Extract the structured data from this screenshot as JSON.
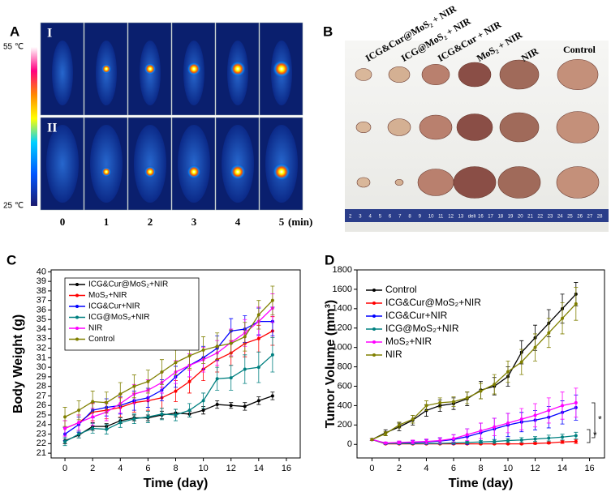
{
  "panels": {
    "a": {
      "label": "A",
      "scale_max": "55 ℃",
      "scale_min": "25 ℃",
      "rows": [
        "I",
        "II"
      ],
      "times": [
        "0",
        "1",
        "2",
        "3",
        "4",
        "5"
      ],
      "time_unit": "(min)"
    },
    "b": {
      "label": "B",
      "groups": [
        "ICG&Cur@MoS₂ + NIR",
        "ICG@MoS₂ + NIR",
        "ICG&Cur + NIR",
        "MoS₂ + NIR",
        "NIR",
        "Control"
      ],
      "ruler": [
        "2",
        "3",
        "4",
        "5",
        "6",
        "7",
        "8",
        "9",
        "10",
        "11",
        "12",
        "13",
        "deli",
        "16",
        "17",
        "18",
        "19",
        "20",
        "21",
        "22",
        "23",
        "24",
        "25",
        "26",
        "27",
        "28"
      ]
    },
    "c": {
      "label": "C"
    },
    "d": {
      "label": "D"
    }
  },
  "chart_data": [
    {
      "type": "line",
      "x_label": "Time (day)",
      "y_label": "Body Weight (g)",
      "x": [
        0,
        1,
        2,
        3,
        4,
        5,
        6,
        7,
        8,
        9,
        10,
        11,
        12,
        13,
        14,
        15
      ],
      "xlim": [
        -1,
        17
      ],
      "xticks": [
        0,
        2,
        4,
        6,
        8,
        10,
        12,
        14,
        16
      ],
      "ylim": [
        20.5,
        40.2
      ],
      "yticks": [
        21,
        22,
        23,
        24,
        25,
        26,
        27,
        28,
        29,
        30,
        31,
        32,
        33,
        34,
        35,
        36,
        37,
        38,
        39,
        40
      ],
      "legend": "upper left",
      "legend_frame": true,
      "series": [
        {
          "name": "ICG&Cur@MoS₂+NIR",
          "color": "#000000",
          "values": [
            22.3,
            22.9,
            23.8,
            23.8,
            24.4,
            24.7,
            24.7,
            25.0,
            25.2,
            25.1,
            25.5,
            26.1,
            26.0,
            25.9,
            26.5,
            27.0
          ],
          "errors": [
            0.3,
            0.3,
            0.4,
            0.3,
            0.3,
            0.3,
            0.3,
            0.4,
            0.4,
            0.3,
            0.4,
            0.4,
            0.3,
            0.4,
            0.4,
            0.4
          ]
        },
        {
          "name": "MoS₂+NIR",
          "color": "#ff0000",
          "values": [
            23.6,
            24.2,
            25.3,
            25.5,
            25.8,
            26.3,
            26.5,
            26.8,
            27.5,
            28.5,
            29.8,
            30.8,
            31.5,
            32.5,
            33.0,
            33.8
          ],
          "errors": [
            0.8,
            0.8,
            0.9,
            0.9,
            1.0,
            1.0,
            1.0,
            1.1,
            1.1,
            1.2,
            1.2,
            1.3,
            1.3,
            1.4,
            1.4,
            1.5
          ]
        },
        {
          "name": "ICG&Cur+NIR",
          "color": "#0000ff",
          "values": [
            23.0,
            24.0,
            25.5,
            25.8,
            26.0,
            26.5,
            26.8,
            27.6,
            29.0,
            30.2,
            31.0,
            32.0,
            33.8,
            34.0,
            34.8,
            34.8
          ],
          "errors": [
            0.7,
            0.8,
            0.8,
            0.9,
            0.9,
            1.0,
            1.0,
            1.1,
            1.1,
            1.2,
            1.2,
            1.3,
            1.3,
            1.4,
            1.4,
            1.5
          ]
        },
        {
          "name": "ICG@MoS₂+NIR",
          "color": "#008080",
          "values": [
            22.2,
            23.0,
            23.6,
            23.5,
            24.2,
            24.6,
            24.8,
            25.1,
            25.0,
            25.5,
            26.5,
            28.8,
            28.9,
            29.8,
            30.0,
            31.3
          ],
          "errors": [
            0.4,
            0.4,
            0.5,
            0.5,
            0.5,
            0.5,
            0.6,
            0.6,
            0.6,
            0.7,
            0.8,
            1.2,
            1.3,
            1.5,
            1.6,
            1.8
          ]
        },
        {
          "name": "NIR",
          "color": "#ff00ff",
          "values": [
            23.6,
            24.2,
            24.8,
            25.3,
            26.2,
            27.2,
            27.6,
            28.4,
            29.5,
            30.2,
            30.8,
            31.5,
            32.6,
            33.6,
            34.8,
            36.2
          ],
          "errors": [
            0.8,
            0.8,
            0.9,
            0.9,
            1.0,
            1.0,
            1.1,
            1.1,
            1.2,
            1.2,
            1.3,
            1.3,
            1.4,
            1.4,
            1.5,
            1.5
          ]
        },
        {
          "name": "Control",
          "color": "#808000",
          "values": [
            24.8,
            25.5,
            26.4,
            26.3,
            27.2,
            28.0,
            28.5,
            29.5,
            30.5,
            31.2,
            31.8,
            32.2,
            32.5,
            33.2,
            35.5,
            37.0
          ],
          "errors": [
            1.0,
            1.0,
            1.1,
            1.1,
            1.2,
            1.2,
            1.2,
            1.3,
            1.3,
            1.3,
            1.4,
            1.4,
            1.4,
            1.5,
            1.5,
            1.5
          ]
        }
      ]
    },
    {
      "type": "line",
      "x_label": "Time (day)",
      "y_label": "Tumor Volume (mm³)",
      "x": [
        0,
        1,
        2,
        3,
        4,
        5,
        6,
        7,
        8,
        9,
        10,
        11,
        12,
        13,
        14,
        15
      ],
      "xlim": [
        -1.1,
        17.1
      ],
      "xticks": [
        0,
        2,
        4,
        6,
        8,
        10,
        12,
        14,
        16
      ],
      "ylim": [
        -140,
        1800
      ],
      "yticks": [
        0,
        200,
        400,
        600,
        800,
        1000,
        1200,
        1400,
        1600,
        1800
      ],
      "legend": "upper left",
      "legend_frame": false,
      "annotations": [
        "*",
        "*"
      ],
      "series": [
        {
          "name": "Control",
          "color": "#000000",
          "values": [
            50,
            120,
            180,
            250,
            350,
            400,
            420,
            470,
            560,
            600,
            700,
            950,
            1100,
            1250,
            1400,
            1550
          ],
          "errors": [
            10,
            30,
            40,
            50,
            60,
            60,
            60,
            70,
            90,
            90,
            100,
            120,
            130,
            140,
            150,
            120
          ]
        },
        {
          "name": "ICG&Cur@MoS₂+NIR",
          "color": "#ff0000",
          "values": [
            50,
            5,
            5,
            5,
            5,
            5,
            5,
            5,
            5,
            5,
            5,
            5,
            10,
            15,
            25,
            30
          ],
          "errors": [
            10,
            5,
            5,
            5,
            5,
            5,
            5,
            5,
            5,
            5,
            5,
            5,
            8,
            10,
            15,
            20
          ]
        },
        {
          "name": "ICG&Cur+NIR",
          "color": "#0000ff",
          "values": [
            50,
            10,
            15,
            20,
            25,
            35,
            50,
            80,
            120,
            160,
            200,
            230,
            250,
            280,
            330,
            380
          ],
          "errors": [
            10,
            10,
            15,
            20,
            25,
            30,
            50,
            80,
            100,
            110,
            120,
            100,
            100,
            110,
            120,
            130
          ]
        },
        {
          "name": "ICG@MoS₂+NIR",
          "color": "#008080",
          "values": [
            50,
            10,
            10,
            10,
            10,
            10,
            15,
            20,
            25,
            30,
            40,
            45,
            55,
            65,
            75,
            90
          ],
          "errors": [
            10,
            5,
            5,
            5,
            5,
            5,
            10,
            10,
            15,
            20,
            20,
            25,
            25,
            30,
            30,
            35
          ]
        },
        {
          "name": "MoS₂+NIR",
          "color": "#ff00ff",
          "values": [
            50,
            15,
            20,
            25,
            30,
            40,
            60,
            100,
            140,
            180,
            220,
            260,
            300,
            350,
            400,
            430
          ],
          "errors": [
            10,
            10,
            15,
            20,
            25,
            30,
            40,
            60,
            80,
            90,
            100,
            110,
            120,
            130,
            140,
            150
          ]
        },
        {
          "name": "NIR",
          "color": "#808000",
          "values": [
            50,
            110,
            200,
            260,
            400,
            430,
            440,
            480,
            550,
            620,
            750,
            850,
            1000,
            1150,
            1300,
            1450
          ],
          "errors": [
            10,
            20,
            30,
            40,
            50,
            50,
            50,
            60,
            80,
            100,
            110,
            130,
            140,
            150,
            160,
            170
          ]
        }
      ]
    }
  ]
}
